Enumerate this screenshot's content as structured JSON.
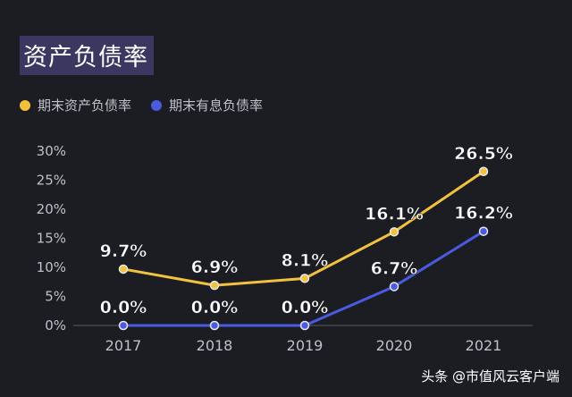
{
  "chart_data": {
    "type": "line",
    "title": "资产负债率",
    "categories": [
      "2017",
      "2018",
      "2019",
      "2020",
      "2021"
    ],
    "ylim": [
      0,
      30
    ],
    "yticks": [
      "0%",
      "5%",
      "10%",
      "15%",
      "20%",
      "25%",
      "30%"
    ],
    "grid": false,
    "legend_position": "top-left",
    "series": [
      {
        "name": "期末资产负债率",
        "color": "#f2c23e",
        "values": [
          9.7,
          6.9,
          8.1,
          16.1,
          26.5
        ],
        "labels": [
          "9.7%",
          "6.9%",
          "8.1%",
          "16.1%",
          "26.5%"
        ]
      },
      {
        "name": "期末有息负债率",
        "color": "#4a5be0",
        "values": [
          0.0,
          0.0,
          0.0,
          6.7,
          16.2
        ],
        "labels": [
          "0.0%",
          "0.0%",
          "0.0%",
          "6.7%",
          "16.2%"
        ]
      }
    ]
  },
  "watermark": "头条 @市值风云客户端"
}
